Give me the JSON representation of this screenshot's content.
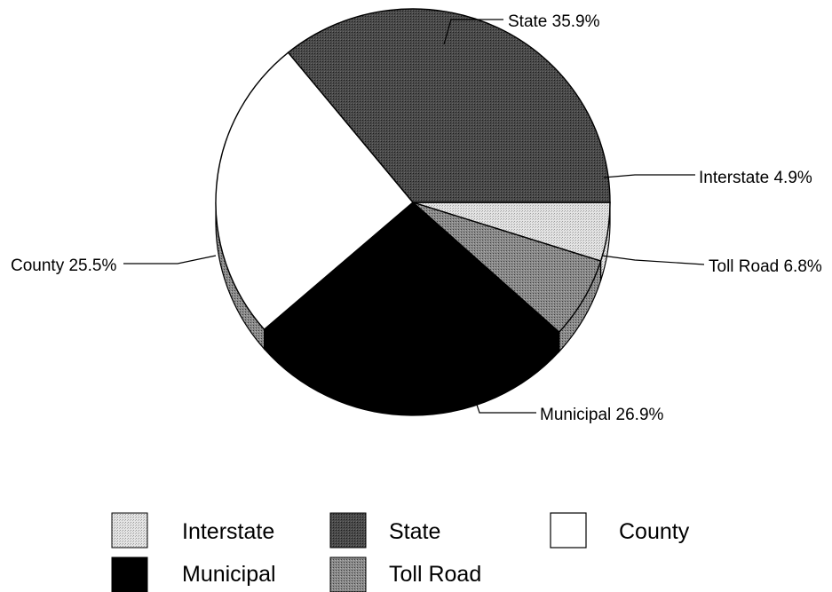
{
  "chart_data": {
    "type": "pie",
    "style": "3d",
    "slices": [
      {
        "label": "Interstate",
        "value": 4.9,
        "display": "Interstate 4.9%",
        "fill": "#d2d2d2"
      },
      {
        "label": "Toll Road",
        "value": 6.8,
        "display": "Toll Road 6.8%",
        "fill": "#7c7c7c"
      },
      {
        "label": "Municipal",
        "value": 26.9,
        "display": "Municipal 26.9%",
        "fill": "#000000"
      },
      {
        "label": "County",
        "value": 25.5,
        "display": "County 25.5%",
        "fill": "#ffffff"
      },
      {
        "label": "State",
        "value": 35.9,
        "display": "State 35.9%",
        "fill": "#454545"
      }
    ],
    "legend": {
      "placement": "bottom",
      "entries": [
        "Interstate",
        "State",
        "County",
        "Municipal",
        "Toll Road"
      ]
    }
  }
}
